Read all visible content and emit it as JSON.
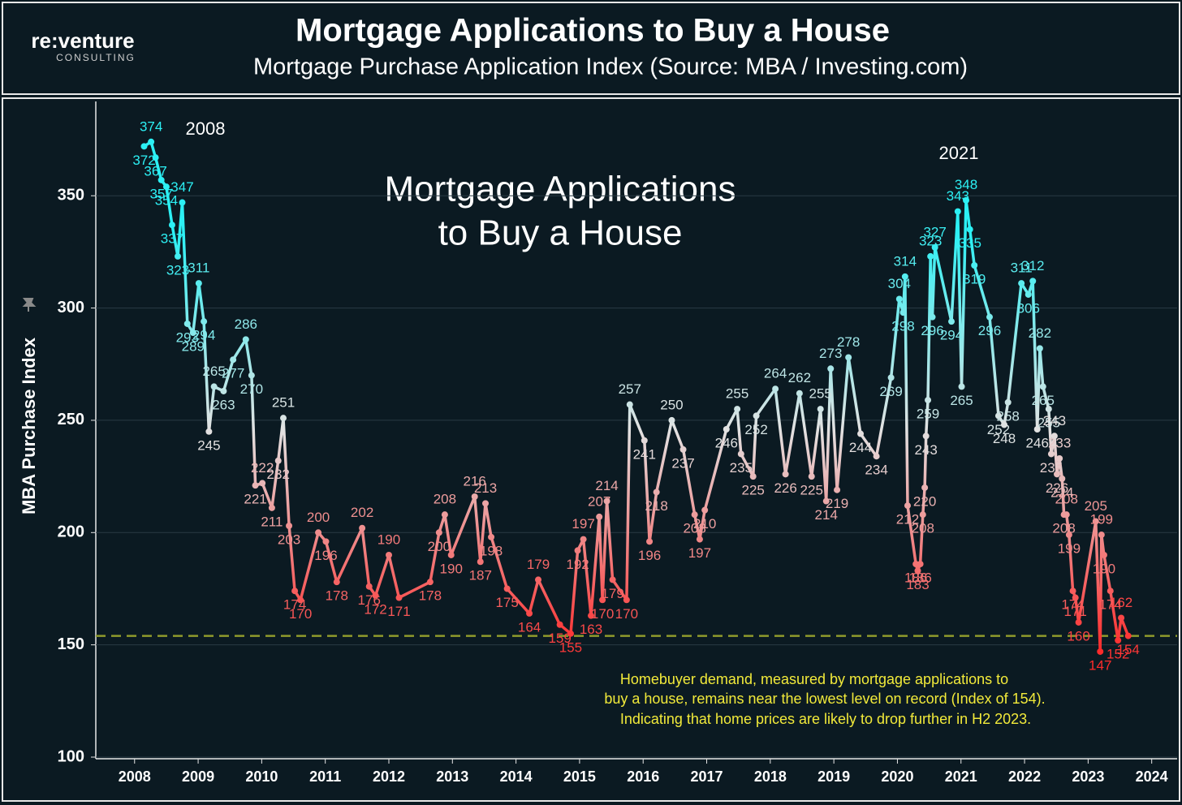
{
  "header": {
    "logo": "re:venture",
    "logo_sub": "CONSULTING"
  },
  "chart_data": {
    "type": "line",
    "title": "Mortgage Applications to Buy a House",
    "subtitle": "Mortgage Purchase Application Index (Source: MBA / Investing.com)",
    "ylabel": "MBA Purchase Index",
    "overlay_title": [
      "Mortgage Applications",
      "to Buy a House"
    ],
    "annotations": [
      "2008",
      "2021"
    ],
    "note": [
      "Homebuyer demand, measured by mortgage applications to",
      "buy a house, remains near the lowest level on record (Index of 154).",
      "Indicating that home prices are likely to drop further in H2 2023."
    ],
    "x": [
      2008.15,
      2008.26,
      2008.33,
      2008.42,
      2008.5,
      2008.59,
      2008.68,
      2008.75,
      2008.83,
      2008.92,
      2009.01,
      2009.09,
      2009.17,
      2009.25,
      2009.4,
      2009.55,
      2009.75,
      2009.84,
      2009.9,
      2010.01,
      2010.16,
      2010.26,
      2010.34,
      2010.43,
      2010.52,
      2010.61,
      2010.89,
      2011.01,
      2011.18,
      2011.58,
      2011.69,
      2011.79,
      2012.0,
      2012.16,
      2012.65,
      2012.79,
      2012.88,
      2012.98,
      2013.35,
      2013.44,
      2013.52,
      2013.61,
      2013.86,
      2014.21,
      2014.35,
      2014.69,
      2014.86,
      2014.97,
      2015.06,
      2015.18,
      2015.31,
      2015.36,
      2015.43,
      2015.52,
      2015.74,
      2015.79,
      2016.02,
      2016.1,
      2016.21,
      2016.45,
      2016.63,
      2016.81,
      2016.89,
      2016.97,
      2017.31,
      2017.48,
      2017.54,
      2017.73,
      2017.78,
      2018.08,
      2018.24,
      2018.46,
      2018.65,
      2018.79,
      2018.88,
      2018.95,
      2019.05,
      2019.23,
      2019.42,
      2019.67,
      2019.9,
      2020.03,
      2020.09,
      2020.12,
      2020.16,
      2020.29,
      2020.32,
      2020.36,
      2020.4,
      2020.43,
      2020.45,
      2020.48,
      2020.52,
      2020.55,
      2020.59,
      2020.85,
      2020.95,
      2021.01,
      2021.08,
      2021.14,
      2021.21,
      2021.45,
      2021.59,
      2021.68,
      2021.74,
      2021.95,
      2022.06,
      2022.13,
      2022.2,
      2022.24,
      2022.29,
      2022.38,
      2022.42,
      2022.47,
      2022.51,
      2022.55,
      2022.59,
      2022.62,
      2022.66,
      2022.7,
      2022.76,
      2022.8,
      2022.85,
      2023.12,
      2023.19,
      2023.21,
      2023.25,
      2023.35,
      2023.47,
      2023.52,
      2023.63
    ],
    "values": [
      372,
      374,
      367,
      357,
      354,
      337,
      323,
      347,
      293,
      289,
      311,
      294,
      245,
      265,
      263,
      277,
      286,
      270,
      221,
      222,
      211,
      232,
      251,
      203,
      174,
      170,
      200,
      196,
      178,
      202,
      176,
      172,
      190,
      171,
      178,
      200,
      208,
      190,
      216,
      187,
      213,
      198,
      175,
      164,
      179,
      159,
      155,
      192,
      197,
      163,
      207,
      170,
      214,
      179,
      170,
      257,
      241,
      196,
      218,
      250,
      237,
      208,
      197,
      210,
      246,
      255,
      235,
      225,
      252,
      264,
      226,
      262,
      225,
      255,
      214,
      273,
      219,
      278,
      244,
      234,
      269,
      304,
      298,
      314,
      212,
      186,
      183,
      186,
      208,
      220,
      243,
      259,
      323,
      296,
      327,
      294,
      343,
      265,
      348,
      335,
      319,
      296,
      252,
      248,
      258,
      311,
      306,
      312,
      246,
      282,
      265,
      255,
      235,
      243,
      226,
      233,
      224,
      208,
      208,
      199,
      174,
      171,
      160,
      205,
      147,
      199,
      190,
      174,
      152,
      162,
      154
    ],
    "colors": [
      "#2cf0f4",
      "#e2e2e2",
      "#ff2a2a"
    ],
    "hline": 154,
    "hline_color": "#8f9a2c",
    "xlim": [
      2007.39,
      2024.4
    ],
    "ylim": [
      100,
      392
    ],
    "xticks": [
      2008,
      2009,
      2010,
      2011,
      2012,
      2013,
      2014,
      2015,
      2016,
      2017,
      2018,
      2019,
      2020,
      2021,
      2022,
      2023,
      2024
    ],
    "yticks": [
      100,
      150,
      200,
      250,
      300,
      350
    ],
    "grid": true
  }
}
